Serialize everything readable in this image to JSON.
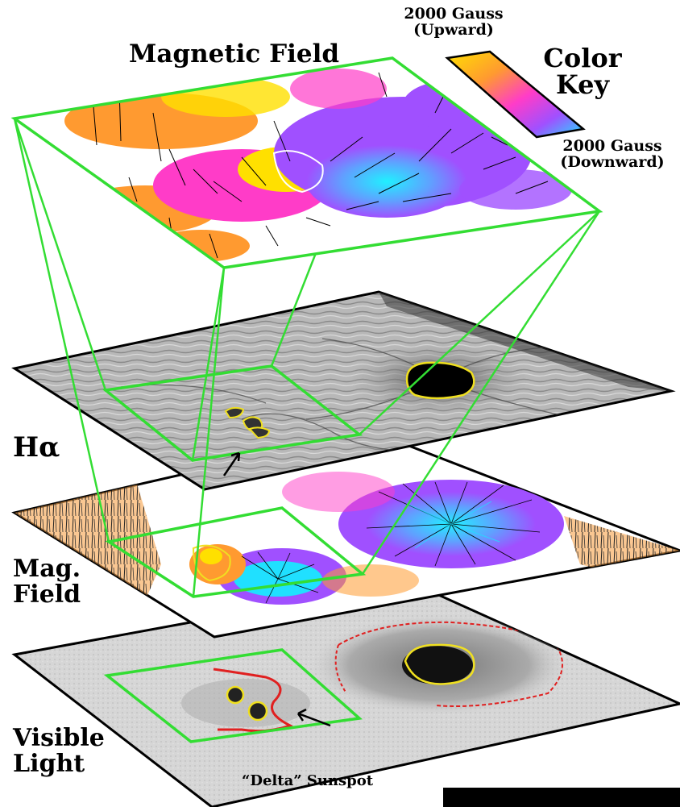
{
  "title": "Magnetic Field",
  "color_key": {
    "title": "Color\nKey",
    "upward_label": "2000 Gauss\n(Upward)",
    "downward_label": "2000 Gauss\n(Downward)",
    "colors": [
      "#ffe000",
      "#ff9a30",
      "#ff3cc8",
      "#a050ff",
      "#20e0ff"
    ]
  },
  "layers": {
    "halpha": "Hα",
    "mag_field": "Mag.\nField",
    "visible": "Visible\nLight"
  },
  "annotation": "“Delta” Sunspot",
  "colors": {
    "frame_green": "#33dd33",
    "contour_yellow": "#f0e020",
    "contour_red": "#e02020"
  }
}
